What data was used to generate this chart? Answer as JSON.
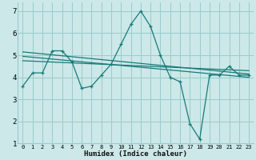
{
  "xlabel": "Humidex (Indice chaleur)",
  "xlim": [
    -0.5,
    23.5
  ],
  "ylim": [
    1,
    7.4
  ],
  "yticks": [
    1,
    2,
    3,
    4,
    5,
    6,
    7
  ],
  "xticks": [
    0,
    1,
    2,
    3,
    4,
    5,
    6,
    7,
    8,
    9,
    10,
    11,
    12,
    13,
    14,
    15,
    16,
    17,
    18,
    19,
    20,
    21,
    22,
    23
  ],
  "bg_color": "#cce8e8",
  "grid_color": "#99cccc",
  "line_color": "#1a7a7a",
  "line1_x": [
    0,
    1,
    2,
    3,
    4,
    5,
    6,
    7,
    8,
    9,
    10,
    11,
    12,
    13,
    14,
    15,
    16,
    17,
    18,
    19,
    20,
    21,
    22,
    23
  ],
  "line1_y": [
    3.6,
    4.2,
    4.2,
    5.2,
    5.2,
    4.7,
    3.5,
    3.6,
    4.1,
    4.6,
    5.5,
    6.4,
    7.0,
    6.3,
    5.0,
    4.0,
    3.8,
    1.9,
    1.2,
    4.1,
    4.1,
    4.5,
    4.1,
    4.1
  ],
  "line2_x": [
    0,
    23
  ],
  "line2_y": [
    5.15,
    4.15
  ],
  "line3_x": [
    0,
    23
  ],
  "line3_y": [
    4.95,
    4.0
  ],
  "line4_x": [
    0,
    23
  ],
  "line4_y": [
    4.75,
    4.3
  ]
}
